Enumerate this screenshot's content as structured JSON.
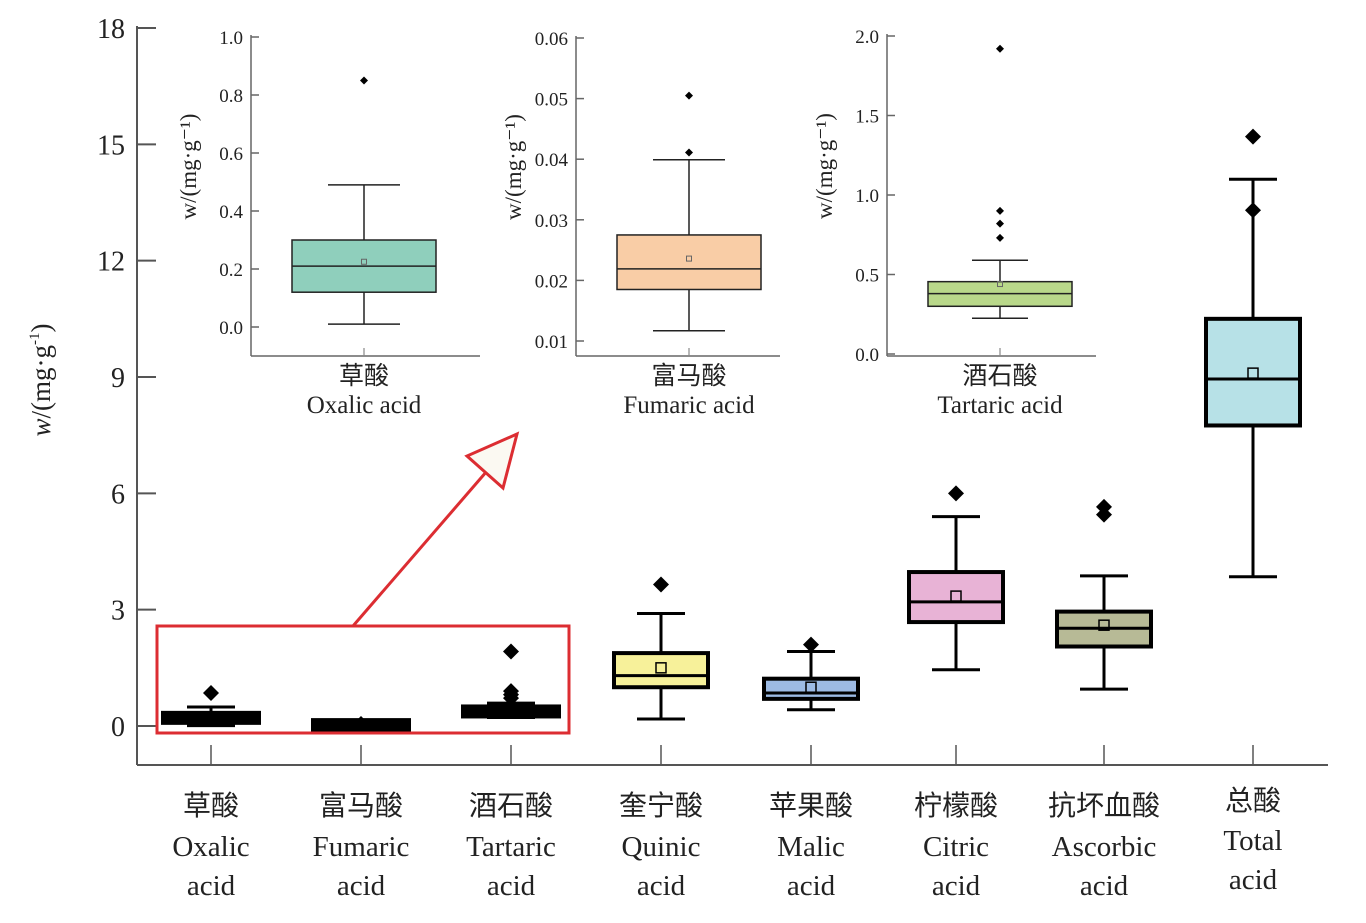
{
  "chart_data": {
    "type": "box",
    "main": {
      "ylabel": "w/(mg·g⁻¹)",
      "ylabel_parts": {
        "var": "w",
        "unit": "/(mg·g",
        "exp": "-1",
        "close": ")"
      },
      "ylim": [
        -1,
        18
      ],
      "yticks": [
        0,
        3,
        6,
        9,
        12,
        15,
        18
      ],
      "ytick_labels": [
        "0",
        "3",
        "6",
        "9",
        "12",
        "15",
        "18"
      ],
      "categories": [
        {
          "zh": "草酸",
          "en1": "Oxalic",
          "en2": "acid"
        },
        {
          "zh": "富马酸",
          "en1": "Fumaric",
          "en2": "acid"
        },
        {
          "zh": "酒石酸",
          "en1": "Tartaric",
          "en2": "acid"
        },
        {
          "zh": "奎宁酸",
          "en1": "Quinic",
          "en2": "acid"
        },
        {
          "zh": "苹果酸",
          "en1": "Malic",
          "en2": "acid"
        },
        {
          "zh": "柠檬酸",
          "en1": "Citric",
          "en2": "acid"
        },
        {
          "zh": "抗坏血酸",
          "en1": "Ascorbic",
          "en2": "acid"
        },
        {
          "zh": "总酸",
          "en1": "Total",
          "en2": "acid"
        }
      ],
      "series": [
        {
          "name": "Oxalic acid",
          "color": "#000000",
          "whisker_low": 0.01,
          "q1": 0.12,
          "median": 0.21,
          "q3": 0.3,
          "whisker_high": 0.49,
          "mean": 0.23,
          "outliers": [
            0.85
          ]
        },
        {
          "name": "Fumaric acid",
          "color": "#000000",
          "whisker_low": 0.012,
          "q1": 0.019,
          "median": 0.022,
          "q3": 0.027,
          "whisker_high": 0.04,
          "mean": 0.024,
          "outliers": [
            0.041,
            0.05
          ]
        },
        {
          "name": "Tartaric acid",
          "color": "#000000",
          "whisker_low": 0.22,
          "q1": 0.3,
          "median": 0.37,
          "q3": 0.45,
          "whisker_high": 0.59,
          "mean": 0.44,
          "outliers": [
            0.72,
            0.81,
            0.9,
            1.92
          ]
        },
        {
          "name": "Quinic acid",
          "color": "#f7f19a",
          "whisker_low": 0.18,
          "q1": 1.0,
          "median": 1.3,
          "q3": 1.88,
          "whisker_high": 2.9,
          "mean": 1.5,
          "outliers": [
            3.65
          ]
        },
        {
          "name": "Malic acid",
          "color": "#9dbbe4",
          "whisker_low": 0.42,
          "q1": 0.7,
          "median": 0.85,
          "q3": 1.22,
          "whisker_high": 1.92,
          "mean": 1.0,
          "outliers": [
            2.1
          ]
        },
        {
          "name": "Citric acid",
          "color": "#e8b3d6",
          "whisker_low": 1.45,
          "q1": 2.68,
          "median": 3.2,
          "q3": 3.97,
          "whisker_high": 5.4,
          "mean": 3.35,
          "outliers": [
            6.0
          ]
        },
        {
          "name": "Ascorbic acid",
          "color": "#b7ba96",
          "whisker_low": 0.95,
          "q1": 2.05,
          "median": 2.52,
          "q3": 2.95,
          "whisker_high": 3.87,
          "mean": 2.6,
          "outliers": [
            5.45,
            5.65
          ]
        },
        {
          "name": "Total acid",
          "color": "#b7e1e7",
          "whisker_low": 3.85,
          "q1": 7.75,
          "median": 8.95,
          "q3": 10.5,
          "whisker_high": 14.1,
          "mean": 9.1,
          "outliers": [
            13.3,
            15.2
          ]
        }
      ],
      "highlight_box_color": "#dc2d32"
    },
    "insets": [
      {
        "zh": "草酸",
        "en": "Oxalic acid",
        "ylabel": "w/(mg·g⁻¹)",
        "ylim": [
          -0.1,
          1.0
        ],
        "yticks": [
          0.0,
          0.2,
          0.4,
          0.6,
          0.8,
          1.0
        ],
        "ytick_labels": [
          "0.0",
          "0.2",
          "0.4",
          "0.6",
          "0.8",
          "1.0"
        ],
        "color": "#8fcfbc",
        "whisker_low": 0.01,
        "q1": 0.12,
        "median": 0.21,
        "q3": 0.3,
        "whisker_high": 0.49,
        "mean": 0.225,
        "outliers": [
          0.85
        ]
      },
      {
        "zh": "富马酸",
        "en": "Fumaric acid",
        "ylabel": "w/(mg·g⁻¹)",
        "ylim": [
          0.0077,
          0.06
        ],
        "yticks": [
          0.01,
          0.02,
          0.03,
          0.04,
          0.05,
          0.06
        ],
        "ytick_labels": [
          "0.01",
          "0.02",
          "0.03",
          "0.04",
          "0.05",
          "0.06"
        ],
        "color": "#f9cda6",
        "whisker_low": 0.0117,
        "q1": 0.0185,
        "median": 0.0219,
        "q3": 0.0275,
        "whisker_high": 0.0399,
        "mean": 0.0236,
        "outliers": [
          0.0411,
          0.0505
        ]
      },
      {
        "zh": "酒石酸",
        "en": "Tartaric acid",
        "ylabel": "w/(mg·g⁻¹)",
        "ylim": [
          0.0,
          2.0
        ],
        "yticks": [
          0.0,
          0.5,
          1.0,
          1.5,
          2.0
        ],
        "ytick_labels": [
          "0.0",
          "0.5",
          "1.0",
          "1.5",
          "2.0"
        ],
        "color": "#b9d88a",
        "whisker_low": 0.225,
        "q1": 0.3,
        "median": 0.38,
        "q3": 0.455,
        "whisker_high": 0.59,
        "mean": 0.44,
        "outliers": [
          0.73,
          0.82,
          0.9,
          1.92
        ]
      }
    ]
  }
}
